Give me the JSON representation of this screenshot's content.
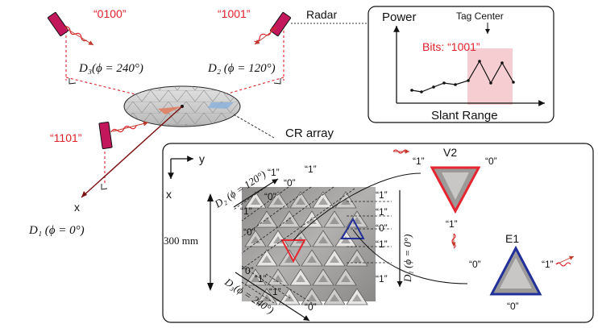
{
  "colors": {
    "bit_red": "#e0202a",
    "device_magenta": "#c2185b",
    "v2_outline": "#e52630",
    "e1_outline": "#22309a",
    "highlight_fill": "#f6cdd0",
    "tag_blue": "#8fb3da",
    "tag_red": "#e07a5a",
    "array_bg": "#9c9a99"
  },
  "radars": {
    "top_left": {
      "bits": "“0100”"
    },
    "top_right": {
      "bits": "“1001”"
    },
    "left": {
      "bits": "“1101”"
    }
  },
  "distances": {
    "d3": "D₃(ϕ = 240°)",
    "d2": "D₂ (ϕ = 120°)",
    "d1": "D₁ (ϕ = 0°)"
  },
  "axis_x_main": "x",
  "radar_label": "Radar",
  "inset_plot": {
    "ylabel": "Power",
    "xlabel": "Slant Range",
    "annotation": "Tag Center",
    "bits_label": "Bits: “1001”"
  },
  "cr_array": {
    "title": "CR array",
    "axis_y": "y",
    "axis_x": "x",
    "size_label": "300 mm",
    "d2_label": "D₂ (ϕ = 120°)",
    "d1_label": "D₁ (ϕ = 0°)",
    "d3_label": "D₃(ϕ = 240°)",
    "d2_bits": [
      "“1”",
      "“1”",
      "“0”",
      "“0”"
    ],
    "d1_bits": [
      "“1”",
      "“1”",
      "“0”",
      "“1”",
      "“1”"
    ],
    "left_bits": [
      "“1”",
      "“0”"
    ],
    "d3_bits": [
      "“0”",
      "“1”",
      "“1”",
      "“0”"
    ]
  },
  "v2": {
    "name": "V2",
    "left": "“1”",
    "right": "“0”",
    "bottom": "“1”"
  },
  "e1": {
    "name": "E1",
    "left": "“0”",
    "right": "“1”",
    "bottom": "“0”"
  }
}
